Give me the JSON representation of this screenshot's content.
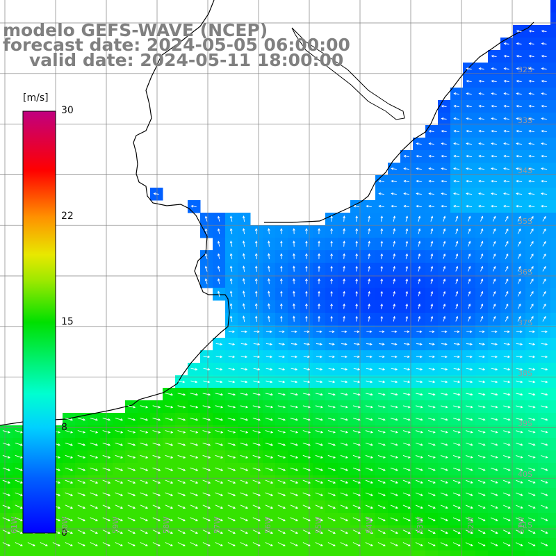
{
  "header": {
    "model": "modelo GEFS-WAVE (NCEP)",
    "forecast": "forecast date: 2024-05-05 06:00:00",
    "valid": "valid date: 2024-05-11 18:00:00"
  },
  "colorbar": {
    "unit": "[m/s]",
    "ticks": [
      "30",
      "22",
      "15",
      "8",
      "0"
    ],
    "range": [
      0,
      30
    ],
    "colors": [
      "#0000ff",
      "#0080ff",
      "#00e8ff",
      "#00e000",
      "#e8e800",
      "#ff8000",
      "#ff0000",
      "#c00080"
    ]
  },
  "map": {
    "lat_labels": [
      "32S",
      "33S",
      "34S",
      "35S",
      "36S",
      "37S",
      "38S",
      "39S",
      "40S",
      "41S"
    ],
    "lon_labels": [
      "61W",
      "60W",
      "59W",
      "58W",
      "57W",
      "56W",
      "55W",
      "54W",
      "53W",
      "52W",
      "51W"
    ],
    "land_color": "#ffffff",
    "grid_color": "#808080",
    "coast_color": "#000000",
    "arrow_color": "#ffffff"
  }
}
